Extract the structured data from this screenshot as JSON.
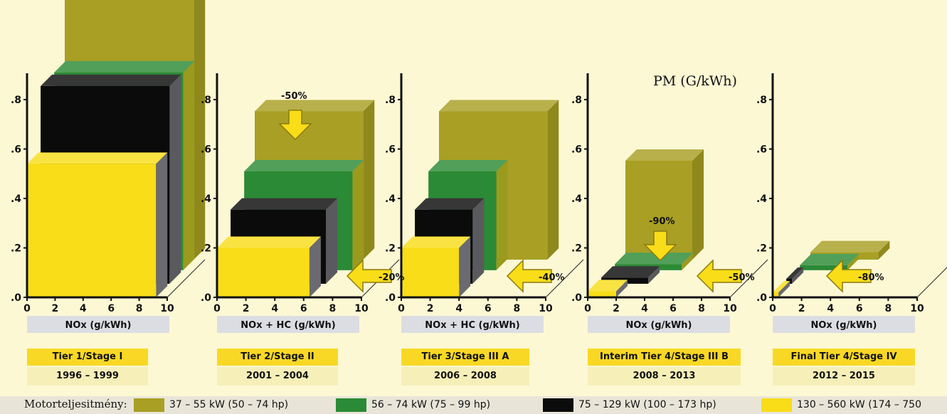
{
  "colors": {
    "range_37_55": "#a89f24",
    "range_56_74": "#2b8a35",
    "range_75_129": "#0b0b0b",
    "range_130_560": "#f8dd18",
    "axis_label_bg": "#dcdde3",
    "arrow_fill": "#f8dd18"
  },
  "pm_label": "PM (G/kWh)",
  "legend": {
    "title": "Motorteljesitmény:",
    "items": [
      {
        "label": "37 – 55 kW (50 – 74 hp)",
        "color": "#a89f24"
      },
      {
        "label": "56 – 74 kW (75 – 99 hp)",
        "color": "#2b8a35"
      },
      {
        "label": "75 – 129 kW (100 – 173 hp)",
        "color": "#0b0b0b"
      },
      {
        "label": "130 – 560 kW (174 – 750",
        "color": "#f8dd18"
      }
    ]
  },
  "chart_data": [
    {
      "type": "bar",
      "title": "Tier 1/Stage I",
      "years": "1996 – 1999",
      "xlabel": "NOx (g/kWh)",
      "xticks": [
        "0",
        "2",
        "4",
        "6",
        "8",
        "10"
      ],
      "yticks": [
        ".0",
        ".2",
        ".4",
        ".6",
        ".8"
      ],
      "xlim": [
        0,
        10
      ],
      "ylim": [
        0,
        0.8
      ],
      "series": [
        {
          "name": "37 – 55 kW (50 – 74 hp)",
          "nox": 9.2,
          "pm": 1.08
        },
        {
          "name": "56 – 74 kW (75 – 99 hp)",
          "nox": 9.2,
          "pm": 0.8
        },
        {
          "name": "75 – 129 kW (100 – 173 hp)",
          "nox": 9.2,
          "pm": 0.8
        },
        {
          "name": "130 – 560 kW (174 – 750",
          "nox": 9.2,
          "pm": 0.54
        }
      ],
      "annotations": []
    },
    {
      "type": "bar",
      "title": "Tier 2/Stage II",
      "years": "2001 – 2004",
      "xlabel": "NOx + HC (g/kWh)",
      "xticks": [
        "0",
        "2",
        "4",
        "6",
        "8",
        "10"
      ],
      "yticks": [
        ".0",
        ".2",
        ".4",
        ".6",
        ".8"
      ],
      "xlim": [
        0,
        10
      ],
      "ylim": [
        0,
        0.8
      ],
      "series": [
        {
          "name": "37 – 55 kW (50 – 74 hp)",
          "nox": 7.5,
          "pm": 0.6
        },
        {
          "name": "56 – 74 kW (75 – 99 hp)",
          "nox": 7.5,
          "pm": 0.4
        },
        {
          "name": "75 – 129 kW (100 – 173 hp)",
          "nox": 6.6,
          "pm": 0.3
        },
        {
          "name": "130 – 560 kW (174 – 750",
          "nox": 6.4,
          "pm": 0.2
        }
      ],
      "annotations": [
        "-50%",
        "-20%"
      ]
    },
    {
      "type": "bar",
      "title": "Tier 3/Stage III A",
      "years": "2006 – 2008",
      "xlabel": "NOx + HC (g/kWh)",
      "xticks": [
        "0",
        "2",
        "4",
        "6",
        "8",
        "10"
      ],
      "yticks": [
        ".0",
        ".2",
        ".4",
        ".6",
        ".8"
      ],
      "xlim": [
        0,
        10
      ],
      "ylim": [
        0,
        0.8
      ],
      "series": [
        {
          "name": "37 – 55 kW (50 – 74 hp)",
          "nox": 7.5,
          "pm": 0.6
        },
        {
          "name": "56 – 74 kW (75 – 99 hp)",
          "nox": 4.7,
          "pm": 0.4
        },
        {
          "name": "75 – 129 kW (100 – 173 hp)",
          "nox": 4.0,
          "pm": 0.3
        },
        {
          "name": "130 – 560 kW (174 – 750",
          "nox": 4.0,
          "pm": 0.2
        }
      ],
      "annotations": [
        "-40%"
      ]
    },
    {
      "type": "bar",
      "title": "Interim Tier 4/Stage III B",
      "years": "2008 – 2013",
      "xlabel": "NOx (g/kWh)",
      "xticks": [
        "0",
        "2",
        "4",
        "6",
        "8",
        "10"
      ],
      "yticks": [
        ".0",
        ".2",
        ".4",
        ".6",
        ".8"
      ],
      "xlim": [
        0,
        10
      ],
      "ylim": [
        0,
        0.8
      ],
      "series": [
        {
          "name": "37 – 55 kW (50 – 74 hp)",
          "nox": 4.7,
          "pm": 0.4
        },
        {
          "name": "56 – 74 kW (75 – 99 hp)",
          "nox": 4.7,
          "pm": 0.025
        },
        {
          "name": "75 – 129 kW (100 – 173 hp)",
          "nox": 3.3,
          "pm": 0.025
        },
        {
          "name": "130 – 560 kW (174 – 750",
          "nox": 2.0,
          "pm": 0.025
        }
      ],
      "annotations": [
        "-90%",
        "-50%"
      ]
    },
    {
      "type": "bar",
      "title": "Final Tier 4/Stage IV",
      "years": "2012 – 2015",
      "xlabel": "NOx (g/kWh)",
      "xticks": [
        "0",
        "2",
        "4",
        "6",
        "8",
        "10"
      ],
      "yticks": [
        ".0",
        ".2",
        ".4",
        ".6",
        ".8"
      ],
      "xlim": [
        0,
        10
      ],
      "ylim": [
        0,
        0.8
      ],
      "series": [
        {
          "name": "37 – 55 kW (50 – 74 hp)",
          "nox": 4.7,
          "pm": 0.03
        },
        {
          "name": "56 – 74 kW (75 – 99 hp)",
          "nox": 3.3,
          "pm": 0.02
        },
        {
          "name": "75 – 129 kW (100 – 173 hp)",
          "nox": 0.4,
          "pm": 0.02
        },
        {
          "name": "130 – 560 kW (174 – 750",
          "nox": 0.4,
          "pm": 0.02
        }
      ],
      "annotations": [
        "-80%"
      ]
    }
  ]
}
